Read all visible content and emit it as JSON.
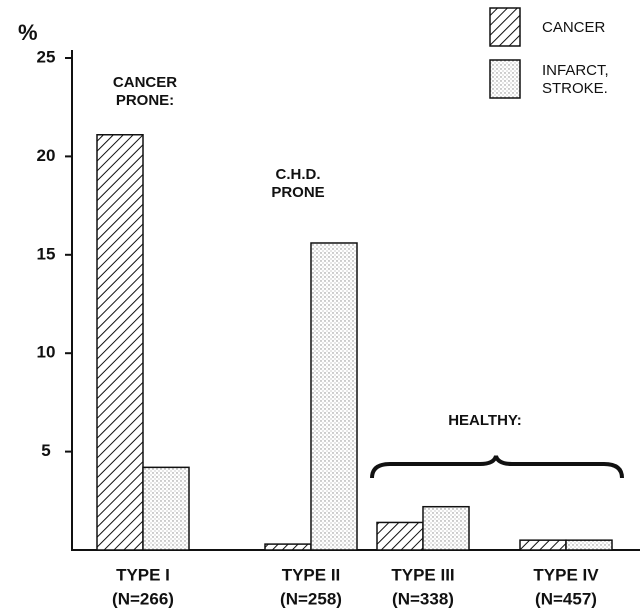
{
  "chart_data": {
    "type": "bar",
    "y_label": "%",
    "categories": [
      "TYPE I",
      "TYPE II",
      "TYPE III",
      "TYPE IV"
    ],
    "category_sublabels": [
      "(N=266)",
      "(N=258)",
      "(N=338)",
      "(N=457)"
    ],
    "series": [
      {
        "name": "CANCER",
        "color": "#111111",
        "pattern": "hatch",
        "values": [
          21.1,
          0.3,
          1.4,
          0.5
        ]
      },
      {
        "name": "INFARCT, STROKE.",
        "color": "#111111",
        "pattern": "dots",
        "values": [
          4.2,
          15.6,
          2.2,
          0.5
        ]
      }
    ],
    "ylim": [
      0,
      25
    ],
    "yticks": [
      5,
      10,
      15,
      20,
      25
    ],
    "grid": false,
    "legend": "top-right",
    "annotations": [
      "CANCER PRONE:",
      "C.H.D. PRONE",
      "HEALTHY:"
    ]
  }
}
